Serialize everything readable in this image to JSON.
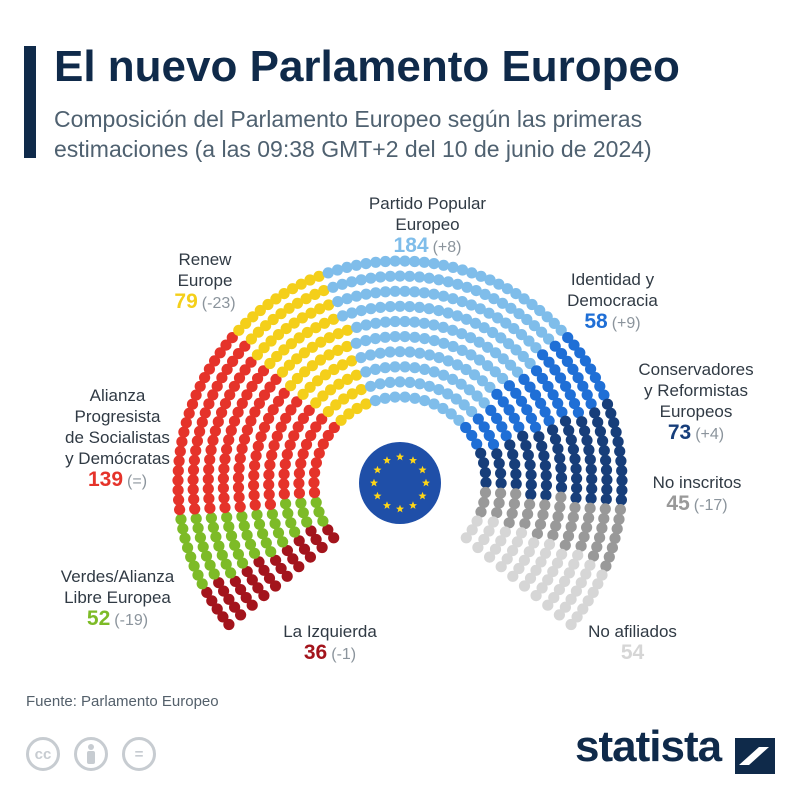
{
  "header": {
    "title": "El nuevo Parlamento Europeo",
    "subtitle": "Composición del Parlamento Europeo según las primeras estimaciones (a las 09:38 GMT+2 del 10 de junio de 2024)"
  },
  "chart_data": {
    "type": "parliament",
    "total_seats": 720,
    "series": [
      {
        "name": "La Izquierda",
        "value": 36,
        "change": "(-1)",
        "color": "#a3141c"
      },
      {
        "name": "Verdes/Alianza Libre Europea",
        "value": 52,
        "change": "(-19)",
        "color": "#7dbb27"
      },
      {
        "name": "Alianza Progresista de Socialistas y Demócratas",
        "value": 139,
        "change": "(=)",
        "color": "#e5332a"
      },
      {
        "name": "Renew Europe",
        "value": 79,
        "change": "(-23)",
        "color": "#f4cf1a"
      },
      {
        "name": "Partido Popular Europeo",
        "value": 184,
        "change": "(+8)",
        "color": "#7fbdea"
      },
      {
        "name": "Identidad y Democracia",
        "value": 58,
        "change": "(+9)",
        "color": "#1f6fd6"
      },
      {
        "name": "Conservadores y Reformistas Europeos",
        "value": 73,
        "change": "(+4)",
        "color": "#173e7a"
      },
      {
        "name": "No inscritos",
        "value": 45,
        "change": "(-17)",
        "color": "#999999"
      },
      {
        "name": "No afiliados",
        "value": 54,
        "change": "",
        "color": "#d6d6d6"
      }
    ],
    "labels": {
      "izquierda": {
        "name": "La Izquierda",
        "value": "36",
        "change": "(-1)"
      },
      "verdes": {
        "name_1": "Verdes/Alianza",
        "name_2": "Libre Europea",
        "value": "52",
        "change": "(-19)"
      },
      "sd": {
        "name_1": "Alianza",
        "name_2": "Progresista",
        "name_3": "de Socialistas",
        "name_4": "y Demócratas",
        "value": "139",
        "change": "(=)"
      },
      "renew": {
        "name_1": "Renew",
        "name_2": "Europe",
        "value": "79",
        "change": "(-23)"
      },
      "ppe": {
        "name_1": "Partido Popular",
        "name_2": "Europeo",
        "value": "184",
        "change": "(+8)"
      },
      "id": {
        "name_1": "Identidad y",
        "name_2": "Democracia",
        "value": "58",
        "change": "(+9)"
      },
      "ecr": {
        "name_1": "Conservadores",
        "name_2": "y Reformistas",
        "name_3": "Europeos",
        "value": "73",
        "change": "(+4)"
      },
      "ni": {
        "name": "No inscritos",
        "value": "45",
        "change": "(-17)"
      },
      "na": {
        "name": "No afiliados",
        "value": "54"
      }
    }
  },
  "footer": {
    "source": "Fuente: Parlamento Europeo",
    "brand": "statista",
    "license_cc": "cc",
    "license_eq": "="
  },
  "colors": {
    "navy": "#0f2a4a",
    "eu_blue": "#1f4fa8",
    "eu_star": "#ffd617"
  }
}
